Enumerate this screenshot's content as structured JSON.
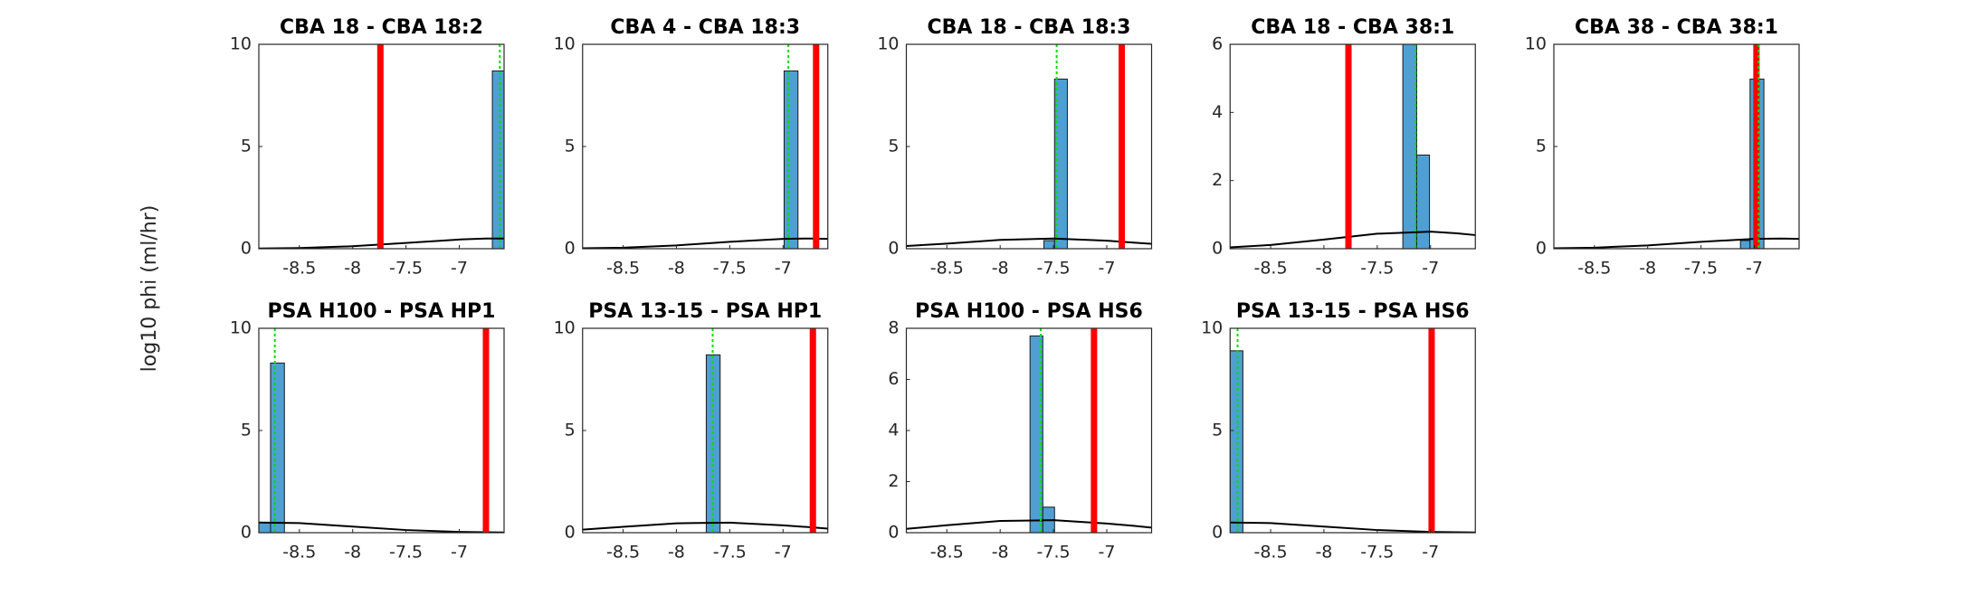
{
  "ylabel": "log10 phi (ml/hr)",
  "chart_data": [
    {
      "type": "histogram",
      "title": "CBA 18 - CBA 18:2",
      "bins": [
        -6.69,
        -6.58
      ],
      "counts": [
        8.7
      ],
      "bar_color": "#4f9fd3",
      "xlim": [
        -8.88,
        -6.58
      ],
      "ylim": [
        0,
        10
      ],
      "xticks": [
        -8.5,
        -8,
        -7.5,
        -7
      ],
      "yticks": [
        0,
        5,
        10
      ],
      "vlines": [
        {
          "x": -7.74,
          "color": "#ff0000",
          "style": "solid"
        },
        {
          "x": -6.62,
          "color": "#00e000",
          "style": "dotted"
        }
      ],
      "curve": {
        "x": [
          -8.88,
          -8.5,
          -8,
          -7.5,
          -7,
          -6.75,
          -6.58
        ],
        "y": [
          0.01,
          0.035,
          0.12,
          0.28,
          0.45,
          0.5,
          0.5
        ]
      }
    },
    {
      "type": "histogram",
      "title": "CBA 4 - CBA 18:3",
      "bins": [
        -6.99,
        -6.86
      ],
      "counts": [
        8.7
      ],
      "bar_color": "#4f9fd3",
      "xlim": [
        -8.88,
        -6.58
      ],
      "ylim": [
        0,
        10
      ],
      "xticks": [
        -8.5,
        -8,
        -7.5,
        -7
      ],
      "yticks": [
        0,
        5,
        10
      ],
      "vlines": [
        {
          "x": -6.69,
          "color": "#ff0000",
          "style": "solid"
        },
        {
          "x": -6.95,
          "color": "#00e000",
          "style": "dotted"
        }
      ],
      "curve": {
        "x": [
          -8.88,
          -8.5,
          -8,
          -7.5,
          -7,
          -6.75,
          -6.58
        ],
        "y": [
          0.02,
          0.05,
          0.16,
          0.34,
          0.48,
          0.5,
          0.48
        ]
      }
    },
    {
      "type": "histogram",
      "title": "CBA 18 - CBA 18:3",
      "bins": [
        -7.59,
        -7.49,
        -7.37
      ],
      "counts": [
        0.4,
        8.3
      ],
      "bar_color": "#4f9fd3",
      "xlim": [
        -8.88,
        -6.58
      ],
      "ylim": [
        0,
        10
      ],
      "xticks": [
        -8.5,
        -8,
        -7.5,
        -7
      ],
      "yticks": [
        0,
        5,
        10
      ],
      "vlines": [
        {
          "x": -6.86,
          "color": "#ff0000",
          "style": "solid"
        },
        {
          "x": -7.47,
          "color": "#00e000",
          "style": "dotted"
        }
      ],
      "curve": {
        "x": [
          -8.88,
          -8.5,
          -8,
          -7.5,
          -7,
          -6.75,
          -6.58
        ],
        "y": [
          0.13,
          0.25,
          0.43,
          0.5,
          0.39,
          0.3,
          0.24
        ]
      }
    },
    {
      "type": "histogram",
      "title": "CBA 18 - CBA 38:1",
      "bins": [
        -7.26,
        -7.13,
        -7.01
      ],
      "counts": [
        6,
        2.75
      ],
      "bar_color": "#4f9fd3",
      "xlim": [
        -8.88,
        -6.58
      ],
      "ylim": [
        0,
        6
      ],
      "xticks": [
        -8.5,
        -8,
        -7.5,
        -7
      ],
      "yticks": [
        0,
        2,
        4,
        6
      ],
      "vlines": [
        {
          "x": -7.77,
          "color": "#ff0000",
          "style": "solid"
        },
        {
          "x": -7.14,
          "color": "#00e000",
          "style": "dotted"
        }
      ],
      "curve": {
        "x": [
          -8.88,
          -8.5,
          -8,
          -7.5,
          -7,
          -6.75,
          -6.58
        ],
        "y": [
          0.04,
          0.11,
          0.27,
          0.44,
          0.5,
          0.45,
          0.4
        ]
      }
    },
    {
      "type": "histogram",
      "title": "CBA 38 - CBA 38:1",
      "bins": [
        -7.13,
        -7.04,
        -6.91
      ],
      "counts": [
        0.4,
        8.3
      ],
      "bar_color": "#4f9fd3",
      "xlim": [
        -8.88,
        -6.58
      ],
      "ylim": [
        0,
        10
      ],
      "xticks": [
        -8.5,
        -8,
        -7.5,
        -7
      ],
      "yticks": [
        0,
        5,
        10
      ],
      "vlines": [
        {
          "x": -6.98,
          "color": "#ff0000",
          "style": "solid"
        },
        {
          "x": -6.96,
          "color": "#00e000",
          "style": "dotted"
        }
      ],
      "curve": {
        "x": [
          -8.88,
          -8.5,
          -8,
          -7.5,
          -7,
          -6.75,
          -6.58
        ],
        "y": [
          0.02,
          0.05,
          0.16,
          0.34,
          0.48,
          0.5,
          0.48
        ]
      }
    },
    {
      "type": "histogram",
      "title": "PSA H100 - PSA HP1",
      "bins": [
        -8.88,
        -8.77,
        -8.64
      ],
      "counts": [
        0.5,
        8.3
      ],
      "bar_color": "#4f9fd3",
      "xlim": [
        -8.88,
        -6.58
      ],
      "ylim": [
        0,
        10
      ],
      "xticks": [
        -8.5,
        -8,
        -7.5,
        -7
      ],
      "yticks": [
        0,
        5,
        10
      ],
      "vlines": [
        {
          "x": -6.75,
          "color": "#ff0000",
          "style": "solid"
        },
        {
          "x": -8.73,
          "color": "#00e000",
          "style": "dotted"
        }
      ],
      "curve": {
        "x": [
          -8.88,
          -8.5,
          -8,
          -7.5,
          -7,
          -6.75,
          -6.58
        ],
        "y": [
          0.5,
          0.47,
          0.3,
          0.13,
          0.04,
          0.02,
          0.01
        ]
      }
    },
    {
      "type": "histogram",
      "title": "PSA 13-15 - PSA HP1",
      "bins": [
        -7.72,
        -7.59
      ],
      "counts": [
        8.7
      ],
      "bar_color": "#4f9fd3",
      "xlim": [
        -8.88,
        -6.58
      ],
      "ylim": [
        0,
        10
      ],
      "xticks": [
        -8.5,
        -8,
        -7.5,
        -7
      ],
      "yticks": [
        0,
        5,
        10
      ],
      "vlines": [
        {
          "x": -6.72,
          "color": "#ff0000",
          "style": "solid"
        },
        {
          "x": -7.66,
          "color": "#00e000",
          "style": "dotted"
        }
      ],
      "curve": {
        "x": [
          -8.88,
          -8.5,
          -8,
          -7.5,
          -7,
          -6.75,
          -6.58
        ],
        "y": [
          0.15,
          0.29,
          0.46,
          0.49,
          0.36,
          0.27,
          0.2
        ]
      }
    },
    {
      "type": "histogram",
      "title": "PSA H100 - PSA HS6",
      "bins": [
        -7.72,
        -7.6,
        -7.49
      ],
      "counts": [
        7.7,
        1.0
      ],
      "bar_color": "#4f9fd3",
      "xlim": [
        -8.88,
        -6.58
      ],
      "ylim": [
        0,
        8
      ],
      "xticks": [
        -8.5,
        -8,
        -7.5,
        -7
      ],
      "yticks": [
        0,
        2,
        4,
        6,
        8
      ],
      "vlines": [
        {
          "x": -7.12,
          "color": "#ff0000",
          "style": "solid"
        },
        {
          "x": -7.62,
          "color": "#00e000",
          "style": "dotted"
        }
      ],
      "curve": {
        "x": [
          -8.88,
          -8.5,
          -8,
          -7.5,
          -7,
          -6.75,
          -6.58
        ],
        "y": [
          0.15,
          0.29,
          0.46,
          0.49,
          0.36,
          0.27,
          0.2
        ]
      }
    },
    {
      "type": "histogram",
      "title": "PSA 13-15 - PSA HS6",
      "bins": [
        -8.88,
        -8.76
      ],
      "counts": [
        8.9
      ],
      "bar_color": "#4f9fd3",
      "xlim": [
        -8.88,
        -6.58
      ],
      "ylim": [
        0,
        10
      ],
      "xticks": [
        -8.5,
        -8,
        -7.5,
        -7
      ],
      "yticks": [
        0,
        5,
        10
      ],
      "vlines": [
        {
          "x": -6.99,
          "color": "#ff0000",
          "style": "solid"
        },
        {
          "x": -8.81,
          "color": "#00e000",
          "style": "dotted"
        }
      ],
      "curve": {
        "x": [
          -8.88,
          -8.5,
          -8,
          -7.5,
          -7,
          -6.75,
          -6.58
        ],
        "y": [
          0.5,
          0.47,
          0.3,
          0.13,
          0.04,
          0.02,
          0.01
        ]
      }
    }
  ]
}
